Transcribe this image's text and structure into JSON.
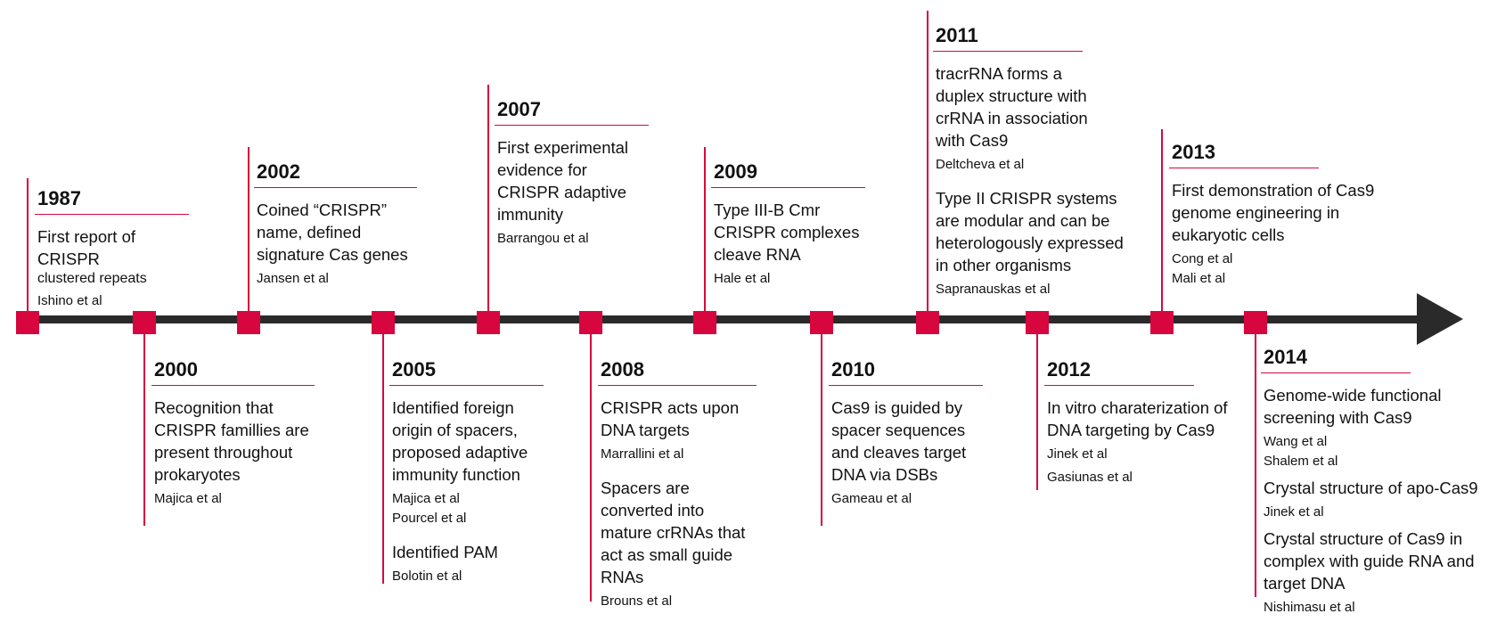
{
  "events": {
    "e1987": {
      "year": "1987",
      "title": "First report of CRISPR",
      "subtitle": "clustered repeats",
      "cite": "Ishino et al"
    },
    "e2000": {
      "year": "2000",
      "title": "Recognition that CRISPR famillies are present throughout prokaryotes",
      "cite": "Majica et al"
    },
    "e2002": {
      "year": "2002",
      "title": "Coined “CRISPR” name, defined signature Cas genes",
      "cite": "Jansen et al"
    },
    "e2005": {
      "year": "2005",
      "title": "Identified foreign origin of spacers, proposed adaptive immunity function",
      "cite1": "Majica et al",
      "cite2": "Pourcel et al",
      "title2": "Identified PAM",
      "cite3": "Bolotin et al"
    },
    "e2007": {
      "year": "2007",
      "title": "First experimental evidence for CRISPR adaptive immunity",
      "cite": "Barrangou et al"
    },
    "e2008": {
      "year": "2008",
      "title": "CRISPR acts upon DNA targets",
      "cite": "Marrallini et al",
      "title2": "Spacers are converted into mature crRNAs that act as small guide RNAs",
      "cite2": "Brouns et al"
    },
    "e2009": {
      "year": "2009",
      "title": "Type III-B Cmr CRISPR complexes cleave RNA",
      "cite": "Hale et al"
    },
    "e2010": {
      "year": "2010",
      "title": "Cas9 is guided by spacer sequences and cleaves target DNA via DSBs",
      "cite": "Gameau et al"
    },
    "e2011": {
      "year": "2011",
      "title": "tracrRNA forms a duplex structure with crRNA in association with Cas9",
      "cite": "Deltcheva et al",
      "title2": "Type II CRISPR systems are modular and can be heterologously expressed in other organisms",
      "cite2": "Sapranauskas et al"
    },
    "e2012": {
      "year": "2012",
      "title": "In vitro charaterization of DNA targeting by Cas9",
      "cite": "Jinek et al",
      "cite2": "Gasiunas et al"
    },
    "e2013": {
      "year": "2013",
      "title": "First demonstration of Cas9 genome engineering in eukaryotic cells",
      "cite1": "Cong et al",
      "cite2": "Mali et al"
    },
    "e2014": {
      "year": "2014",
      "title": "Genome-wide functional screening with Cas9",
      "cite1": "Wang et al",
      "cite2": "Shalem et al",
      "title2": "Crystal structure of apo-Cas9",
      "cite3": "Jinek et al",
      "title3": "Crystal structure of Cas9 in complex with guide RNA and target DNA",
      "cite4": "Nishimasu et al"
    }
  },
  "colors": {
    "accent": "#d7063e",
    "axis": "#2a2a2a"
  }
}
